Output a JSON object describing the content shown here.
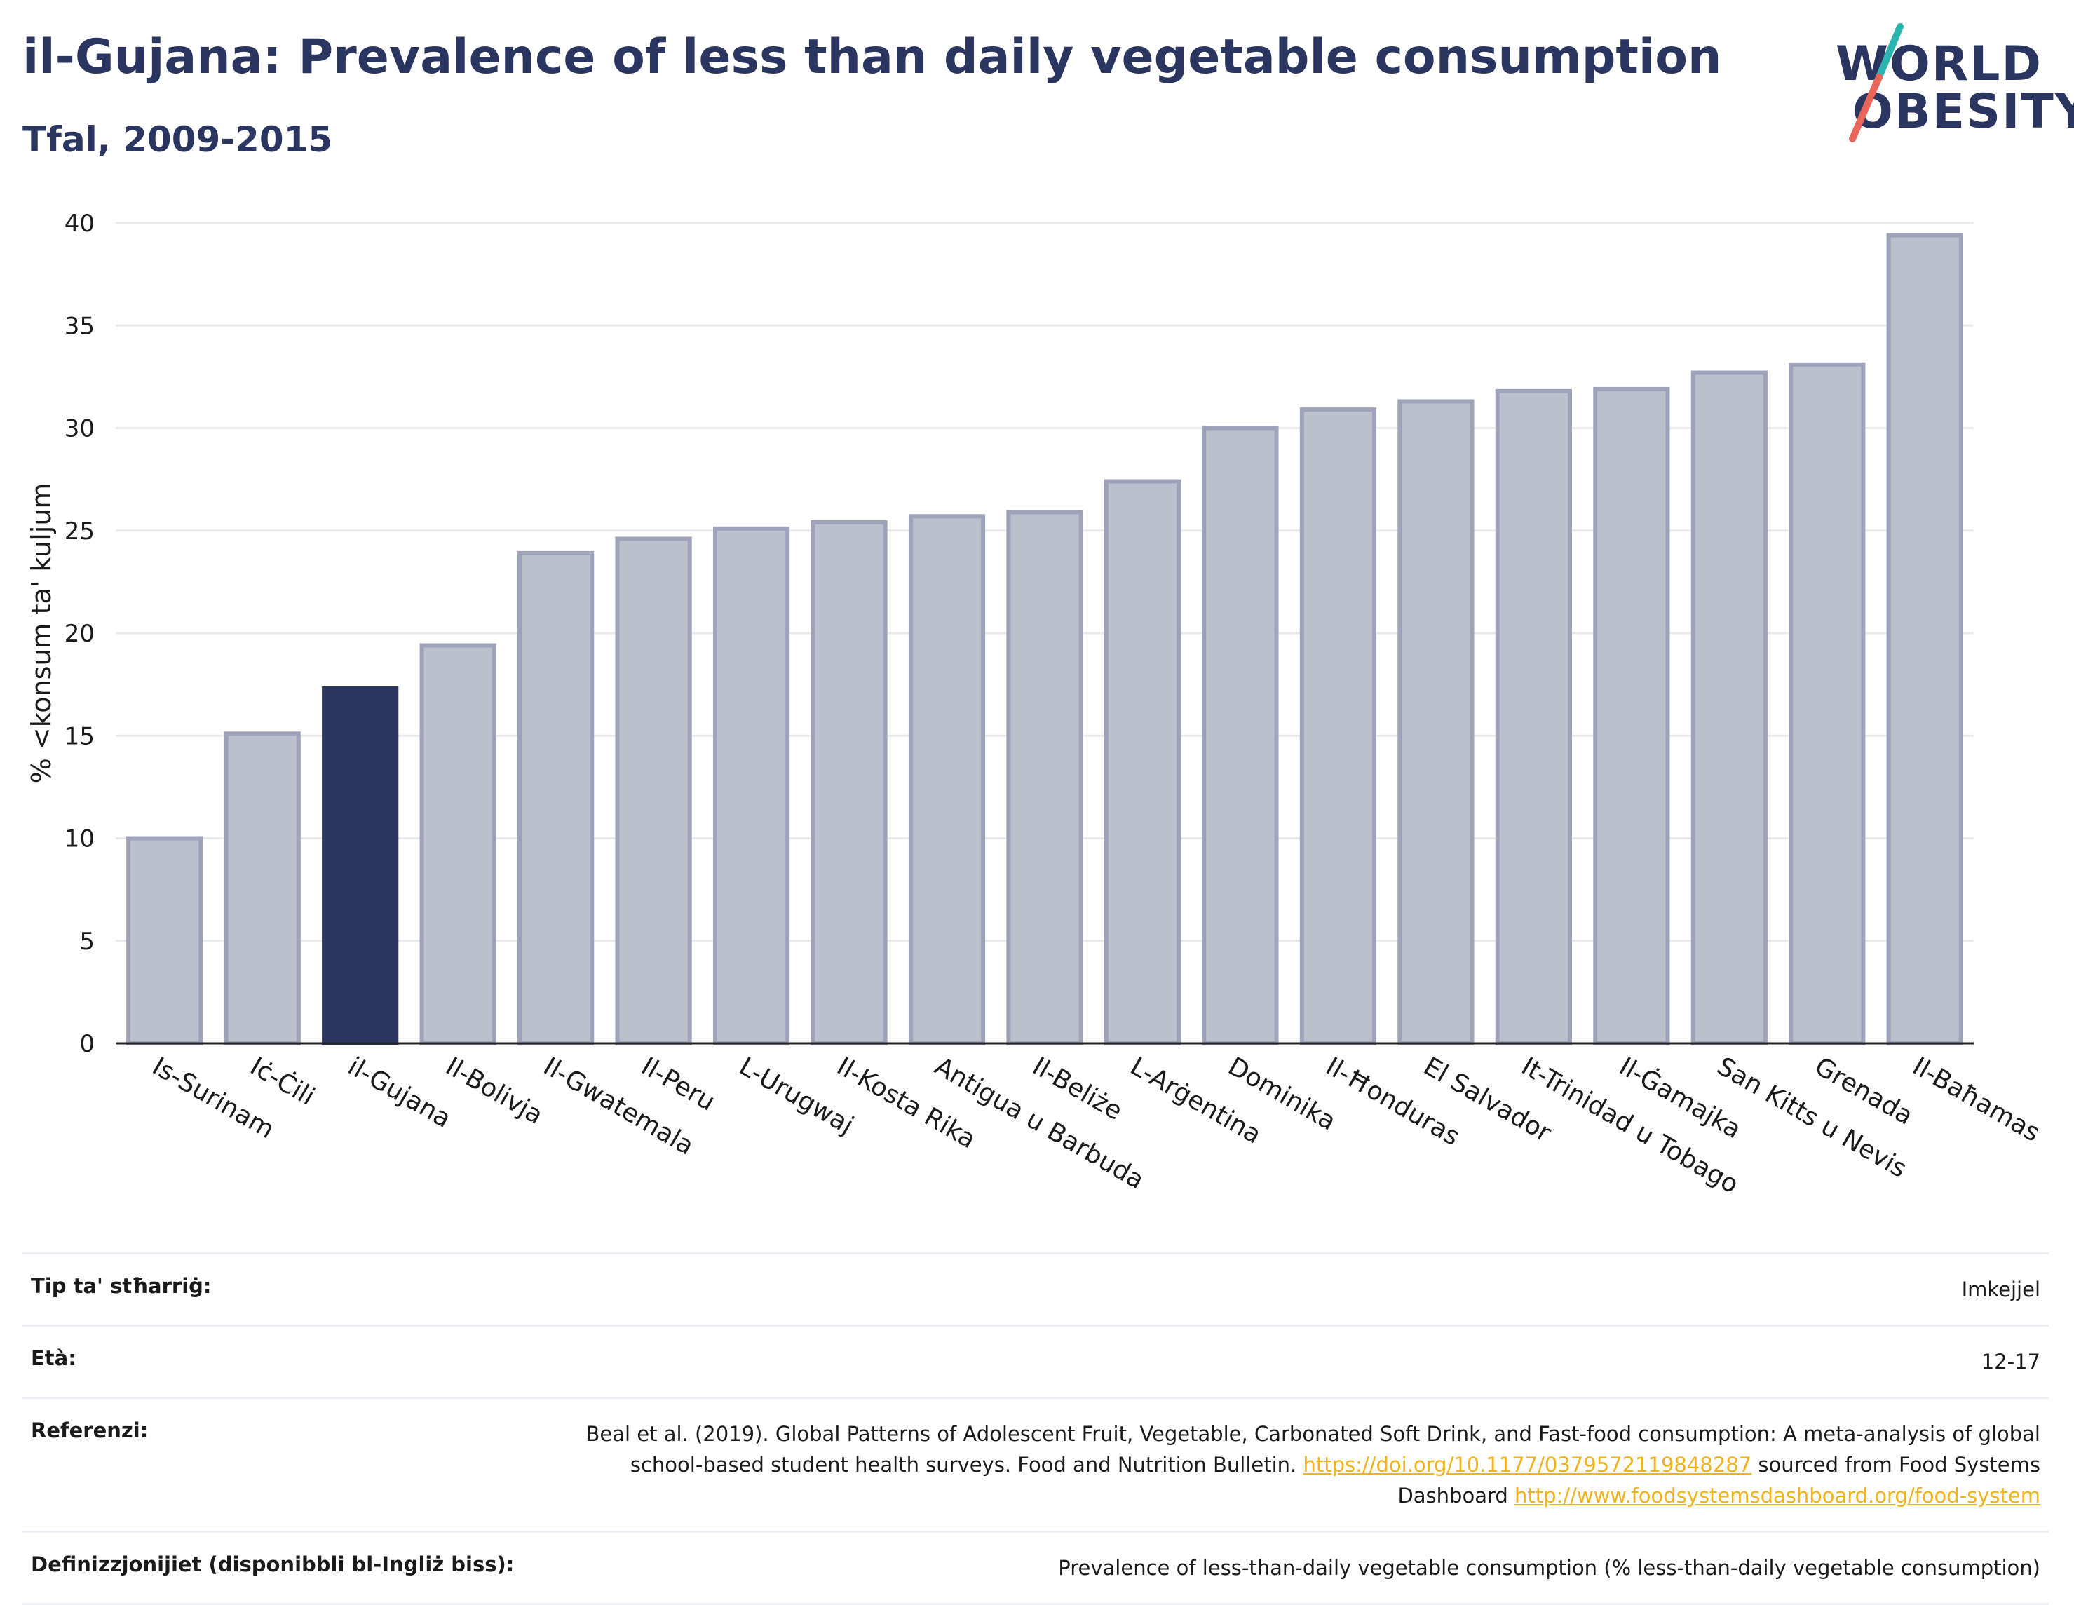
{
  "header": {
    "title": "il-Gujana: Prevalence of less than daily vegetable consumption",
    "subtitle": "Tfal, 2009-2015"
  },
  "logo": {
    "line1": "WORLD",
    "line2": "OBESITY",
    "accent_teal": "#2bb5b0",
    "accent_red": "#e8665a"
  },
  "colors": {
    "highlight": "#2b3660",
    "bar": "#bcc0cc",
    "bar_border": "#9ea3b9"
  },
  "chart_data": {
    "type": "bar",
    "ylabel": "% <konsum ta' kuljum",
    "ylim": [
      0,
      40
    ],
    "yticks": [
      0,
      5,
      10,
      15,
      20,
      25,
      30,
      35,
      40
    ],
    "grid": true,
    "highlight": "il-Gujana",
    "categories": [
      "Is-Surinam",
      "Iċ-Ċili",
      "il-Gujana",
      "Il-Bolivja",
      "Il-Gwatemala",
      "Il-Peru",
      "L-Urugwaj",
      "Il-Kosta Rika",
      "Antigua u Barbuda",
      "Il-Beliże",
      "L-Arġentina",
      "Dominika",
      "Il-Ħonduras",
      "El Salvador",
      "It-Trinidad u Tobago",
      "Il-Ġamajka",
      "San Kitts u Nevis",
      "Grenada",
      "Il-Baħamas"
    ],
    "values": [
      10.0,
      15.1,
      17.3,
      19.4,
      23.9,
      24.6,
      25.1,
      25.4,
      25.7,
      25.9,
      27.4,
      30.0,
      30.9,
      31.3,
      31.8,
      31.9,
      32.7,
      33.1,
      39.4
    ]
  },
  "meta": {
    "rows": [
      {
        "label": "Tip ta' stħarriġ:",
        "value": "Imkejjel"
      },
      {
        "label": "Età:",
        "value": "12-17"
      },
      {
        "label": "Referenzi:",
        "value_before": "Beal et al. (2019). Global Patterns of Adolescent Fruit, Vegetable, Carbonated Soft Drink, and Fast-food consumption: A meta-analysis of global school-based student health surveys. Food and Nutrition Bulletin. ",
        "link1": "https://doi.org/10.1177/0379572119848287",
        "value_middle": " sourced from Food Systems Dashboard ",
        "link2": "http://www.foodsystemsdashboard.org/food-system"
      },
      {
        "label": "Definizzjonijiet (disponibbli bl-Ingliż biss):",
        "value": "Prevalence of less-than-daily vegetable consumption (% less-than-daily vegetable consumption)"
      }
    ]
  }
}
